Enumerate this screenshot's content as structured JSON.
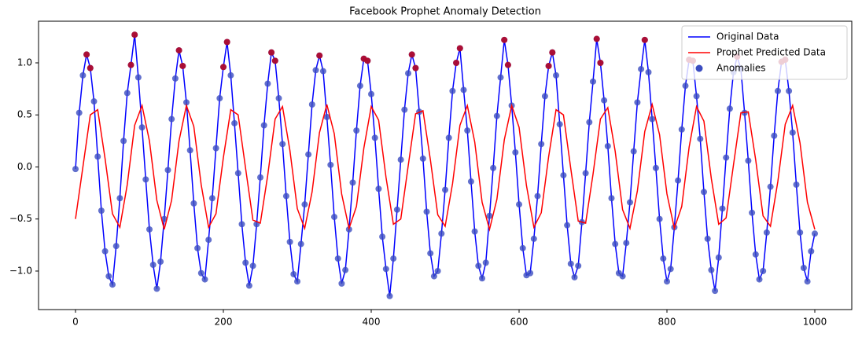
{
  "chart_data": {
    "type": "line",
    "title": "Facebook Prophet Anomaly Detection",
    "xlim": [
      -50,
      1050
    ],
    "xticks": [
      0,
      200,
      400,
      600,
      800,
      1000
    ],
    "ylim": [
      -1.37,
      1.4
    ],
    "yticks": [
      {
        "value": -1.0,
        "label": "−1.0"
      },
      {
        "value": -0.5,
        "label": "−0.5"
      },
      {
        "value": 0.0,
        "label": "0.0"
      },
      {
        "value": 0.5,
        "label": "0.5"
      },
      {
        "value": 1.0,
        "label": "1.0"
      }
    ],
    "grid": false,
    "legend": "upper right",
    "series": [
      {
        "name": "Original Data",
        "kind": "line",
        "color": "#0000ff",
        "marker_color": "#3b4cc0",
        "x": [
          0,
          5,
          10,
          15,
          20,
          25,
          30,
          35,
          40,
          45,
          50,
          55,
          60,
          65,
          70,
          75,
          80,
          85,
          90,
          95,
          100,
          105,
          110,
          115,
          120,
          125,
          130,
          135,
          140,
          145,
          150,
          155,
          160,
          165,
          170,
          175,
          180,
          185,
          190,
          195,
          200,
          205,
          210,
          215,
          220,
          225,
          230,
          235,
          240,
          245,
          250,
          255,
          260,
          265,
          270,
          275,
          280,
          285,
          290,
          295,
          300,
          305,
          310,
          315,
          320,
          325,
          330,
          335,
          340,
          345,
          350,
          355,
          360,
          365,
          370,
          375,
          380,
          385,
          390,
          395,
          400,
          405,
          410,
          415,
          420,
          425,
          430,
          435,
          440,
          445,
          450,
          455,
          460,
          465,
          470,
          475,
          480,
          485,
          490,
          495,
          500,
          505,
          510,
          515,
          520,
          525,
          530,
          535,
          540,
          545,
          550,
          555,
          560,
          565,
          570,
          575,
          580,
          585,
          590,
          595,
          600,
          605,
          610,
          615,
          620,
          625,
          630,
          635,
          640,
          645,
          650,
          655,
          660,
          665,
          670,
          675,
          680,
          685,
          690,
          695,
          700,
          705,
          710,
          715,
          720,
          725,
          730,
          735,
          740,
          745,
          750,
          755,
          760,
          765,
          770,
          775,
          780,
          785,
          790,
          795,
          800,
          805,
          810,
          815,
          820,
          825,
          830,
          835,
          840,
          845,
          850,
          855,
          860,
          865,
          870,
          875,
          880,
          885,
          890,
          895,
          900,
          905,
          910,
          915,
          920,
          925,
          930,
          935,
          940,
          945,
          950,
          955,
          960,
          965,
          970,
          975,
          980,
          985,
          990,
          995,
          1000
        ],
        "values": [
          -0.02,
          0.52,
          0.88,
          1.08,
          0.95,
          0.63,
          0.1,
          -0.42,
          -0.81,
          -1.05,
          -1.13,
          -0.76,
          -0.3,
          0.25,
          0.71,
          0.98,
          1.27,
          0.86,
          0.38,
          -0.12,
          -0.6,
          -0.94,
          -1.17,
          -0.91,
          -0.5,
          -0.03,
          0.46,
          0.85,
          1.12,
          0.97,
          0.62,
          0.16,
          -0.35,
          -0.78,
          -1.02,
          -1.08,
          -0.7,
          -0.3,
          0.18,
          0.66,
          0.96,
          1.2,
          0.88,
          0.42,
          -0.06,
          -0.55,
          -0.92,
          -1.14,
          -0.95,
          -0.55,
          -0.1,
          0.4,
          0.8,
          1.1,
          1.02,
          0.66,
          0.22,
          -0.28,
          -0.72,
          -1.03,
          -1.1,
          -0.74,
          -0.36,
          0.12,
          0.6,
          0.93,
          1.07,
          0.92,
          0.48,
          0.02,
          -0.48,
          -0.88,
          -1.12,
          -0.99,
          -0.6,
          -0.15,
          0.35,
          0.78,
          1.04,
          1.02,
          0.7,
          0.28,
          -0.21,
          -0.67,
          -0.98,
          -1.24,
          -0.88,
          -0.41,
          0.07,
          0.55,
          0.9,
          1.08,
          0.95,
          0.53,
          0.08,
          -0.43,
          -0.83,
          -1.05,
          -1.0,
          -0.64,
          -0.22,
          0.28,
          0.73,
          1.0,
          1.14,
          0.74,
          0.35,
          -0.14,
          -0.62,
          -0.95,
          -1.07,
          -0.92,
          -0.47,
          -0.01,
          0.49,
          0.86,
          1.22,
          0.98,
          0.59,
          0.14,
          -0.36,
          -0.78,
          -1.04,
          -1.02,
          -0.69,
          -0.28,
          0.22,
          0.68,
          0.97,
          1.1,
          0.88,
          0.41,
          -0.08,
          -0.56,
          -0.93,
          -1.06,
          -0.95,
          -0.53,
          -0.06,
          0.43,
          0.82,
          1.23,
          1.0,
          0.64,
          0.2,
          -0.3,
          -0.74,
          -1.02,
          -1.05,
          -0.73,
          -0.34,
          0.15,
          0.62,
          0.94,
          1.22,
          0.91,
          0.46,
          -0.01,
          -0.5,
          -0.88,
          -1.1,
          -0.98,
          -0.58,
          -0.13,
          0.36,
          0.78,
          1.03,
          1.02,
          0.68,
          0.27,
          -0.24,
          -0.69,
          -0.99,
          -1.19,
          -0.87,
          -0.4,
          0.09,
          0.56,
          0.91,
          1.06,
          0.94,
          0.52,
          0.06,
          -0.44,
          -0.84,
          -1.08,
          -1.0,
          -0.63,
          -0.19,
          0.3,
          0.73,
          1.01,
          1.03,
          0.73,
          0.33,
          -0.17,
          -0.63,
          -0.97,
          -1.1,
          -0.81,
          -0.64
        ]
      },
      {
        "name": "Prophet Predicted Data",
        "kind": "line",
        "color": "#ff0000",
        "x": [
          0,
          10,
          20,
          30,
          40,
          50,
          60,
          70,
          80,
          90,
          100,
          110,
          120,
          130,
          140,
          150,
          160,
          170,
          180,
          190,
          200,
          210,
          220,
          230,
          240,
          250,
          260,
          270,
          280,
          290,
          300,
          310,
          320,
          330,
          340,
          350,
          360,
          370,
          380,
          390,
          400,
          410,
          420,
          430,
          440,
          450,
          460,
          470,
          480,
          490,
          500,
          510,
          520,
          530,
          540,
          550,
          560,
          570,
          580,
          590,
          600,
          610,
          620,
          630,
          640,
          650,
          660,
          670,
          680,
          690,
          700,
          710,
          720,
          730,
          740,
          750,
          760,
          770,
          780,
          790,
          800,
          810,
          820,
          830,
          840,
          850,
          860,
          870,
          880,
          890,
          900,
          910,
          920,
          930,
          940,
          950,
          960,
          970,
          980,
          990,
          1000
        ],
        "values": [
          -0.5,
          0.0,
          0.5,
          0.55,
          0.08,
          -0.45,
          -0.58,
          -0.17,
          0.4,
          0.59,
          0.25,
          -0.32,
          -0.6,
          -0.32,
          0.25,
          0.59,
          0.39,
          -0.17,
          -0.58,
          -0.45,
          0.09,
          0.55,
          0.5,
          -0.01,
          -0.51,
          -0.54,
          -0.08,
          0.46,
          0.58,
          0.16,
          -0.4,
          -0.59,
          -0.24,
          0.33,
          0.6,
          0.32,
          -0.26,
          -0.59,
          -0.38,
          0.18,
          0.58,
          0.45,
          -0.1,
          -0.55,
          -0.5,
          0.01,
          0.51,
          0.54,
          0.07,
          -0.46,
          -0.57,
          -0.16,
          0.4,
          0.59,
          0.24,
          -0.34,
          -0.6,
          -0.31,
          0.26,
          0.59,
          0.38,
          -0.18,
          -0.58,
          -0.44,
          0.1,
          0.55,
          0.5,
          -0.02,
          -0.52,
          -0.54,
          -0.07,
          0.46,
          0.57,
          0.15,
          -0.41,
          -0.59,
          -0.23,
          0.34,
          0.6,
          0.31,
          -0.26,
          -0.59,
          -0.38,
          0.19,
          0.58,
          0.44,
          -0.11,
          -0.55,
          -0.49,
          0.02,
          0.52,
          0.53,
          0.07,
          -0.47,
          -0.57,
          -0.14,
          0.41,
          0.59,
          0.23,
          -0.34,
          -0.6
        ]
      },
      {
        "name": "Anomalies",
        "kind": "scatter",
        "color": "#b40426",
        "legend_color": "#3b4cc0",
        "x": [
          15,
          20,
          75,
          80,
          140,
          145,
          200,
          205,
          265,
          270,
          330,
          390,
          395,
          455,
          460,
          515,
          520,
          580,
          585,
          640,
          645,
          705,
          710,
          770,
          830,
          835,
          895,
          955,
          960
        ],
        "values": [
          1.08,
          0.95,
          0.98,
          1.27,
          1.12,
          0.97,
          0.96,
          1.2,
          1.1,
          1.02,
          1.07,
          1.04,
          1.02,
          1.08,
          0.95,
          1.0,
          1.14,
          1.22,
          0.98,
          0.97,
          1.1,
          1.23,
          1.0,
          1.22,
          1.03,
          1.02,
          1.06,
          1.01,
          1.03
        ]
      }
    ]
  }
}
